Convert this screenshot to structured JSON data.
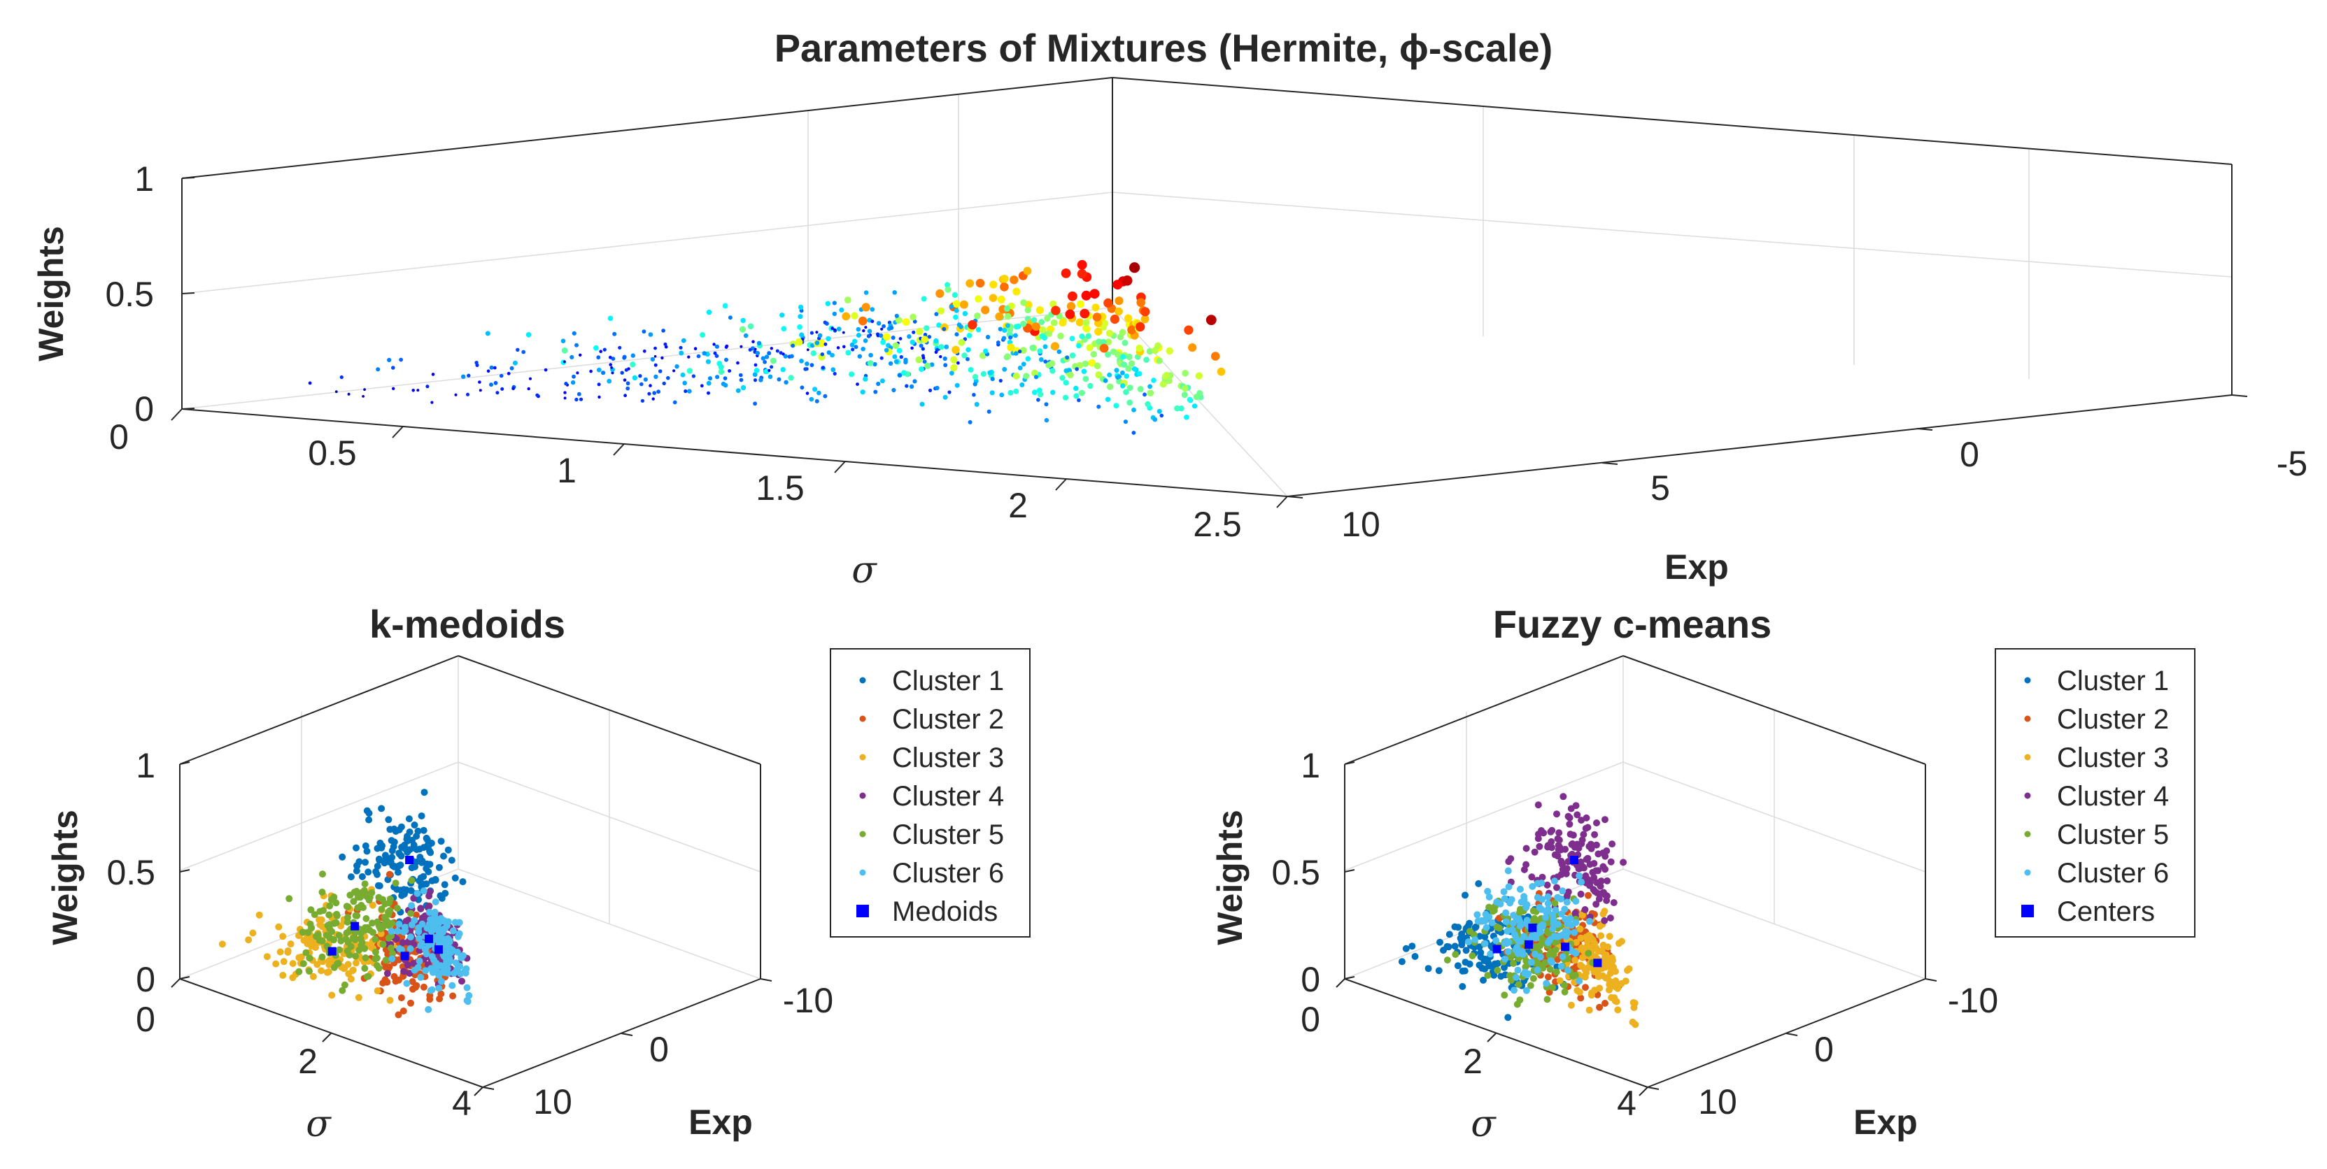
{
  "chart_data": [
    {
      "type": "scatter",
      "id": "main",
      "title": "Parameters of Mixtures (Hermite, ϕ-scale)",
      "xlabel": "σ",
      "ylabel": "Exp",
      "zlabel": "Weights",
      "xlim": [
        0,
        2.5
      ],
      "ylim": [
        -5,
        10
      ],
      "zlim": [
        0,
        1
      ],
      "xticks": [
        "0",
        "0.5",
        "1",
        "1.5",
        "2",
        "2.5"
      ],
      "yticks": [
        "-5",
        "0",
        "5",
        "10"
      ],
      "zticks": [
        "0",
        "0.5",
        "1"
      ],
      "colormap": "jet",
      "description": "Point color and size scale with Weights (jet colormap)"
    },
    {
      "type": "scatter",
      "id": "kmedoids",
      "title": "k-medoids",
      "xlabel": "σ",
      "ylabel": "Exp",
      "zlabel": "Weights",
      "xlim": [
        0,
        4
      ],
      "ylim": [
        -10,
        10
      ],
      "zlim": [
        0,
        1
      ],
      "xticks": [
        "0",
        "2",
        "4"
      ],
      "yticks": [
        "-10",
        "0",
        "10"
      ],
      "zticks": [
        "0",
        "0.5",
        "1"
      ],
      "legend_position": "right",
      "series": [
        {
          "name": "Cluster 1",
          "color": "#0072BD",
          "center": {
            "sigma": 2.6,
            "weight": 0.68,
            "exp": 2.0
          }
        },
        {
          "name": "Cluster 2",
          "color": "#D95319",
          "center": {
            "sigma": 2.5,
            "weight": 0.22,
            "exp": 2.0
          }
        },
        {
          "name": "Cluster 3",
          "color": "#EDB120",
          "center": {
            "sigma": 0.9,
            "weight": 0.04,
            "exp": 2.0
          }
        },
        {
          "name": "Cluster 4",
          "color": "#7E2F8E",
          "center": {
            "sigma": 2.9,
            "weight": 0.3,
            "exp": 0.0
          }
        },
        {
          "name": "Cluster 5",
          "color": "#77AC30",
          "center": {
            "sigma": 1.4,
            "weight": 0.22,
            "exp": 2.0
          }
        },
        {
          "name": "Cluster 6",
          "color": "#4DBEEE",
          "center": {
            "sigma": 3.1,
            "weight": 0.25,
            "exp": -1.0
          }
        }
      ],
      "marker_series": {
        "name": "Medoids",
        "color": "#0000FF"
      }
    },
    {
      "type": "scatter",
      "id": "fcm",
      "title": "Fuzzy c-means",
      "xlabel": "σ",
      "ylabel": "Exp",
      "zlabel": "Weights",
      "xlim": [
        0,
        4
      ],
      "ylim": [
        -10,
        10
      ],
      "zlim": [
        0,
        1
      ],
      "xticks": [
        "0",
        "2",
        "4"
      ],
      "yticks": [
        "-10",
        "0",
        "10"
      ],
      "zticks": [
        "0",
        "0.5",
        "1"
      ],
      "legend_position": "right",
      "series": [
        {
          "name": "Cluster 1",
          "color": "#0072BD",
          "center": {
            "sigma": 0.9,
            "weight": 0.05,
            "exp": 2.0
          }
        },
        {
          "name": "Cluster 2",
          "color": "#D95319",
          "center": {
            "sigma": 2.4,
            "weight": 0.25,
            "exp": 2.0
          }
        },
        {
          "name": "Cluster 3",
          "color": "#EDB120",
          "center": {
            "sigma": 3.0,
            "weight": 0.2,
            "exp": 0.0
          }
        },
        {
          "name": "Cluster 4",
          "color": "#7E2F8E",
          "center": {
            "sigma": 2.6,
            "weight": 0.68,
            "exp": 2.0
          }
        },
        {
          "name": "Cluster 5",
          "color": "#77AC30",
          "center": {
            "sigma": 1.6,
            "weight": 0.16,
            "exp": 2.0
          }
        },
        {
          "name": "Cluster 6",
          "color": "#4DBEEE",
          "center": {
            "sigma": 1.5,
            "weight": 0.2,
            "exp": 1.0
          }
        }
      ],
      "marker_series": {
        "name": "Centers",
        "color": "#0000FF"
      }
    }
  ]
}
